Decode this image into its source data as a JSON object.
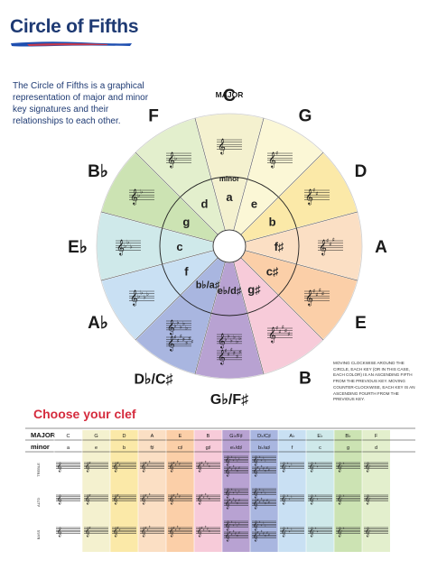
{
  "title": "Circle of Fifths",
  "intro": "The Circle of Fifths is a graphical representation of major and minor key signatures and their relationships to each other.",
  "labels": {
    "major": "MAJOR",
    "minor": "minor"
  },
  "keys": [
    {
      "major": "C",
      "minor": "a",
      "color": "#f4f1cf",
      "acc": "none",
      "n": 0
    },
    {
      "major": "G",
      "minor": "e",
      "color": "#fbf7d6",
      "acc": "sharp",
      "n": 1
    },
    {
      "major": "D",
      "minor": "b",
      "color": "#fbe9a8",
      "acc": "sharp",
      "n": 2
    },
    {
      "major": "A",
      "minor": "f♯",
      "color": "#fbdfc4",
      "acc": "sharp",
      "n": 3
    },
    {
      "major": "E",
      "minor": "c♯",
      "color": "#fbcfa8",
      "acc": "sharp",
      "n": 4
    },
    {
      "major": "B",
      "minor": "g♯",
      "color": "#f7cbd9",
      "acc": "sharp",
      "n": 5
    },
    {
      "major": "G♭/F♯",
      "minor": "e♭/d♯",
      "color": "#b8a2d2",
      "acc": "dual",
      "n": 6
    },
    {
      "major": "D♭/C♯",
      "minor": "b♭/a♯",
      "color": "#a9b6e0",
      "acc": "dual",
      "n": 5
    },
    {
      "major": "A♭",
      "minor": "f",
      "color": "#c9e0f3",
      "acc": "flat",
      "n": 4
    },
    {
      "major": "E♭",
      "minor": "c",
      "color": "#cfe9ea",
      "acc": "flat",
      "n": 3
    },
    {
      "major": "B♭",
      "minor": "g",
      "color": "#cce3b3",
      "acc": "flat",
      "n": 2
    },
    {
      "major": "F",
      "minor": "d",
      "color": "#e3efcd",
      "acc": "flat",
      "n": 1
    }
  ],
  "note": "Moving clockwise around the circle, each key (or in this case, each color) is an ascending fifth from the previous key. Moving counter-clockwise, each key is an ascending fourth from the previous key.",
  "clef_section": {
    "title": "Choose your clef",
    "row_major": "MAJOR",
    "row_minor": "minor",
    "clefs": [
      "TREBLE",
      "ALTO",
      "BASS"
    ],
    "columns": [
      {
        "major": "C",
        "minor": "a",
        "color": "#ffffff"
      },
      {
        "major": "G",
        "minor": "e",
        "color": "#f4f1cf"
      },
      {
        "major": "D",
        "minor": "b",
        "color": "#fbe9a8"
      },
      {
        "major": "A",
        "minor": "f♯",
        "color": "#fbdfc4"
      },
      {
        "major": "E",
        "minor": "c♯",
        "color": "#fbcfa8"
      },
      {
        "major": "B",
        "minor": "g♯",
        "color": "#f7cbd9"
      },
      {
        "major": "G♭/F♯",
        "minor": "e♭/d♯",
        "color": "#b8a2d2"
      },
      {
        "major": "D♭/C♯",
        "minor": "b♭/a♯",
        "color": "#a9b6e0"
      },
      {
        "major": "A♭",
        "minor": "f",
        "color": "#c9e0f3"
      },
      {
        "major": "E♭",
        "minor": "c",
        "color": "#cfe9ea"
      },
      {
        "major": "B♭",
        "minor": "g",
        "color": "#cce3b3"
      },
      {
        "major": "F",
        "minor": "d",
        "color": "#e3efcd"
      }
    ]
  }
}
